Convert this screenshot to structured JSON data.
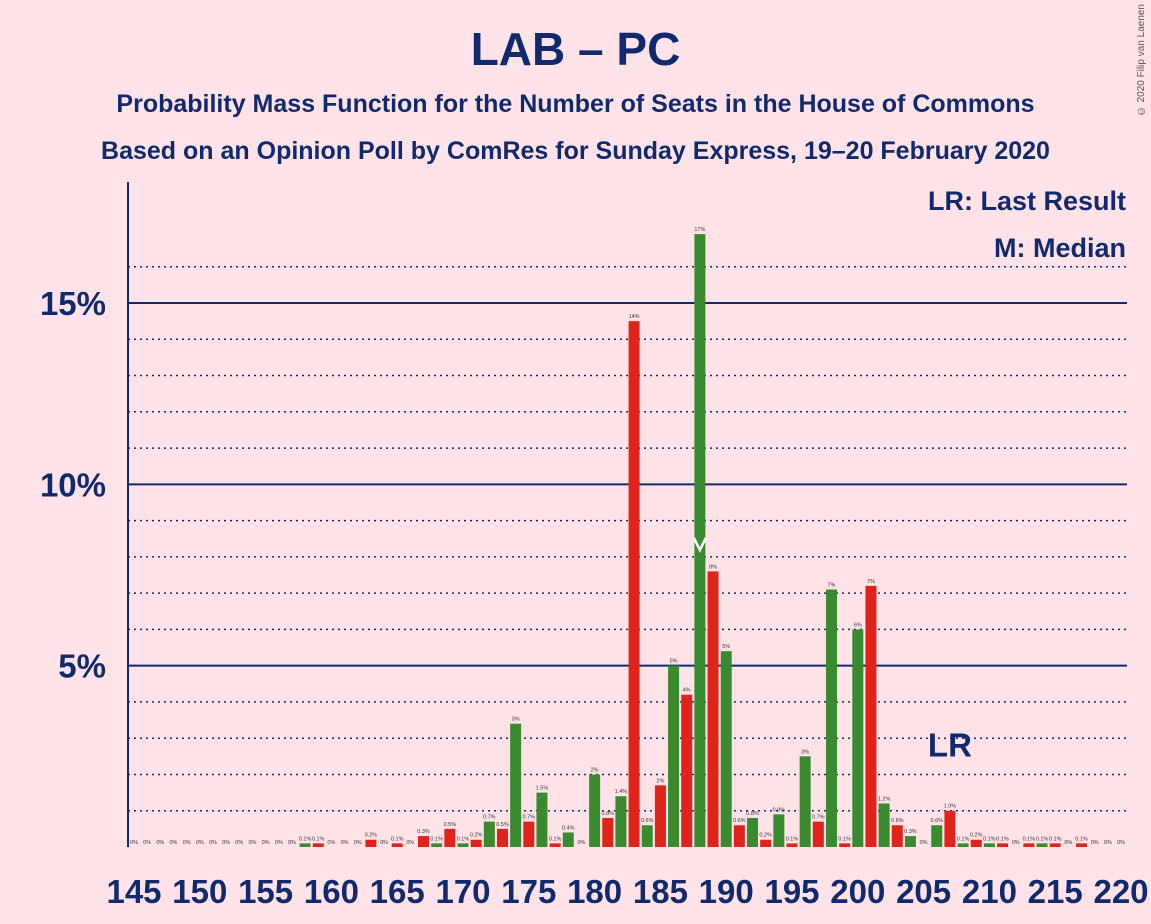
{
  "chart_data": {
    "type": "bar",
    "title": "LAB – PC",
    "subtitle1": "Probability Mass Function for the Number of Seats in the House of Commons",
    "subtitle2": "Based on an Opinion Poll by ComRes for Sunday Express, 19–20 February 2020",
    "copyright": "© 2020 Filip van Laenen",
    "legend": [
      "LR: Last Result",
      "M: Median"
    ],
    "lr_label": "LR",
    "x_ticks": [
      145,
      150,
      155,
      160,
      165,
      170,
      175,
      180,
      185,
      190,
      195,
      200,
      205,
      210,
      215,
      220
    ],
    "y_ticks": [
      {
        "v": 5,
        "label": "5%"
      },
      {
        "v": 10,
        "label": "10%"
      },
      {
        "v": 15,
        "label": "15%"
      }
    ],
    "ylim": [
      0,
      18
    ],
    "xlim": [
      145,
      220
    ],
    "last_result": 207,
    "median": 188,
    "colors": {
      "red": "#e0241b",
      "green": "#3a8a30",
      "axis": "#112a6e",
      "bg": "#ffe3e8"
    },
    "seats": [
      145,
      146,
      147,
      148,
      149,
      150,
      151,
      152,
      153,
      154,
      155,
      156,
      157,
      158,
      159,
      160,
      161,
      162,
      163,
      164,
      165,
      166,
      167,
      168,
      169,
      170,
      171,
      172,
      173,
      174,
      175,
      176,
      177,
      178,
      179,
      180,
      181,
      182,
      183,
      184,
      185,
      186,
      187,
      188,
      189,
      190,
      191,
      192,
      193,
      194,
      195,
      196,
      197,
      198,
      199,
      200,
      201,
      202,
      203,
      204,
      205,
      206,
      207,
      208,
      209,
      210,
      211,
      212,
      213,
      214,
      215,
      216,
      217,
      218,
      219,
      220
    ],
    "values": [
      0,
      0,
      0,
      0,
      0,
      0,
      0,
      0,
      0,
      0,
      0,
      0,
      0,
      0.1,
      0.1,
      0,
      0,
      0,
      0.2,
      0,
      0.1,
      0,
      0.3,
      0.1,
      0.5,
      0.1,
      0.2,
      0.7,
      0.5,
      3.4,
      0.7,
      1.5,
      0.1,
      0.4,
      0,
      2,
      0.8,
      1.4,
      14.5,
      0.6,
      1.7,
      5,
      4.2,
      16.9,
      7.6,
      5.4,
      0.6,
      0.8,
      0.2,
      0.9,
      0.1,
      2.5,
      0.7,
      7.1,
      0.1,
      6,
      7.2,
      1.2,
      0.6,
      0.3,
      0,
      0.6,
      1,
      0.1,
      0.2,
      0.1,
      0.1,
      0,
      0.1,
      0.1,
      0.1,
      0,
      0.1,
      0,
      0,
      0
    ],
    "labels": [
      "0%",
      "0%",
      "0%",
      "0%",
      "0%",
      "0%",
      "0%",
      "0%",
      "0%",
      "0%",
      "0%",
      "0%",
      "0%",
      "0.1%",
      "0.1%",
      "0%",
      "0%",
      "0%",
      "0.2%",
      "0%",
      "0.1%",
      "0%",
      "0.3%",
      "0.1%",
      "0.5%",
      "0.1%",
      "0.2%",
      "0.7%",
      "0.5%",
      "3%",
      "0.7%",
      "1.5%",
      "0.1%",
      "0.4%",
      "0%",
      "2%",
      "0.8%",
      "1.4%",
      "14%",
      "0.6%",
      "2%",
      "5%",
      "4%",
      "17%",
      "8%",
      "5%",
      "0.6%",
      "0.8%",
      "0.2%",
      "0.9%",
      "0.1%",
      "3%",
      "0.7%",
      "7%",
      "0.1%",
      "6%",
      "7%",
      "1.2%",
      "0.6%",
      "0.3%",
      "0%",
      "0.6%",
      "1.0%",
      "0.1%",
      "0.2%",
      "0.1%",
      "0.1%",
      "0%",
      "0.1%",
      "0.1%",
      "0.1%",
      "0%",
      "0.1%",
      "0%",
      "0%",
      "0%"
    ]
  }
}
